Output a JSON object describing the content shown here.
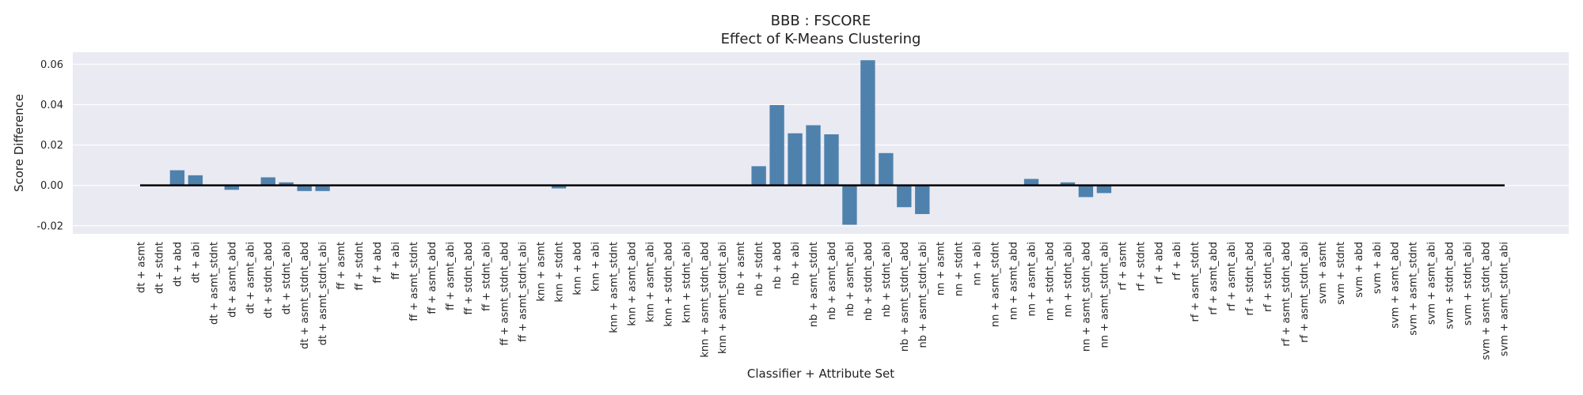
{
  "chart_data": {
    "type": "bar",
    "title": "BBB : FSCORE",
    "subtitle": "Effect of K-Means Clustering",
    "xlabel": "Classifier + Attribute Set",
    "ylabel": "Score Difference",
    "ylim": [
      -0.024,
      0.066
    ],
    "yticks": [
      "-0.02",
      "0.00",
      "0.02",
      "0.04",
      "0.06"
    ],
    "grid": true,
    "bar_color": "#4f81ad",
    "background_color": "#eaeaf2",
    "zero_line_color": "#000000",
    "categories": [
      "dt + asmt",
      "dt + stdnt",
      "dt + abd",
      "dt + abi",
      "dt + asmt_stdnt",
      "dt + asmt_abd",
      "dt + asmt_abi",
      "dt + stdnt_abd",
      "dt + stdnt_abi",
      "dt + asmt_stdnt_abd",
      "dt + asmt_stdnt_abi",
      "ff + asmt",
      "ff + stdnt",
      "ff + abd",
      "ff + abi",
      "ff + asmt_stdnt",
      "ff + asmt_abd",
      "ff + asmt_abi",
      "ff + stdnt_abd",
      "ff + stdnt_abi",
      "ff + asmt_stdnt_abd",
      "ff + asmt_stdnt_abi",
      "knn + asmt",
      "knn + stdnt",
      "knn + abd",
      "knn + abi",
      "knn + asmt_stdnt",
      "knn + asmt_abd",
      "knn + asmt_abi",
      "knn + stdnt_abd",
      "knn + stdnt_abi",
      "knn + asmt_stdnt_abd",
      "knn + asmt_stdnt_abi",
      "nb + asmt",
      "nb + stdnt",
      "nb + abd",
      "nb + abi",
      "nb + asmt_stdnt",
      "nb + asmt_abd",
      "nb + asmt_abi",
      "nb + stdnt_abd",
      "nb + stdnt_abi",
      "nb + asmt_stdnt_abd",
      "nb + asmt_stdnt_abi",
      "nn + asmt",
      "nn + stdnt",
      "nn + abi",
      "nn + asmt_stdnt",
      "nn + asmt_abd",
      "nn + asmt_abi",
      "nn + stdnt_abd",
      "nn + stdnt_abi",
      "nn + asmt_stdnt_abd",
      "nn + asmt_stdnt_abi",
      "rf + asmt",
      "rf + stdnt",
      "rf + abd",
      "rf + abi",
      "rf + asmt_stdnt",
      "rf + asmt_abd",
      "rf + asmt_abi",
      "rf + stdnt_abd",
      "rf + stdnt_abi",
      "rf + asmt_stdnt_abd",
      "rf + asmt_stdnt_abi",
      "svm + asmt",
      "svm + stdnt",
      "svm + abd",
      "svm + abi",
      "svm + asmt_abd",
      "svm + asmt_stdnt",
      "svm + asmt_abi",
      "svm + stdnt_abd",
      "svm + stdnt_abi",
      "svm + asmt_stdnt_abd",
      "svm + asmt_stdnt_abi"
    ],
    "values": [
      0,
      0,
      0.0075,
      0.005,
      0,
      -0.0022,
      0,
      0.004,
      0.0015,
      -0.0028,
      -0.0028,
      0,
      0,
      0,
      0,
      0,
      0,
      0,
      0,
      0,
      0,
      0,
      0,
      -0.0015,
      0,
      0,
      0,
      0,
      0,
      0,
      0,
      0,
      0,
      0,
      0.0095,
      0.0398,
      0.0258,
      0.0298,
      0.0253,
      -0.0195,
      0.062,
      0.016,
      -0.0108,
      -0.0142,
      0,
      0,
      0,
      0,
      0,
      0.0032,
      0,
      0.0015,
      -0.0058,
      -0.0038,
      0,
      0,
      0,
      0,
      0,
      0,
      0,
      0,
      0,
      0,
      0,
      0,
      0,
      0,
      0,
      0,
      0,
      0,
      0,
      0,
      0,
      0
    ]
  }
}
